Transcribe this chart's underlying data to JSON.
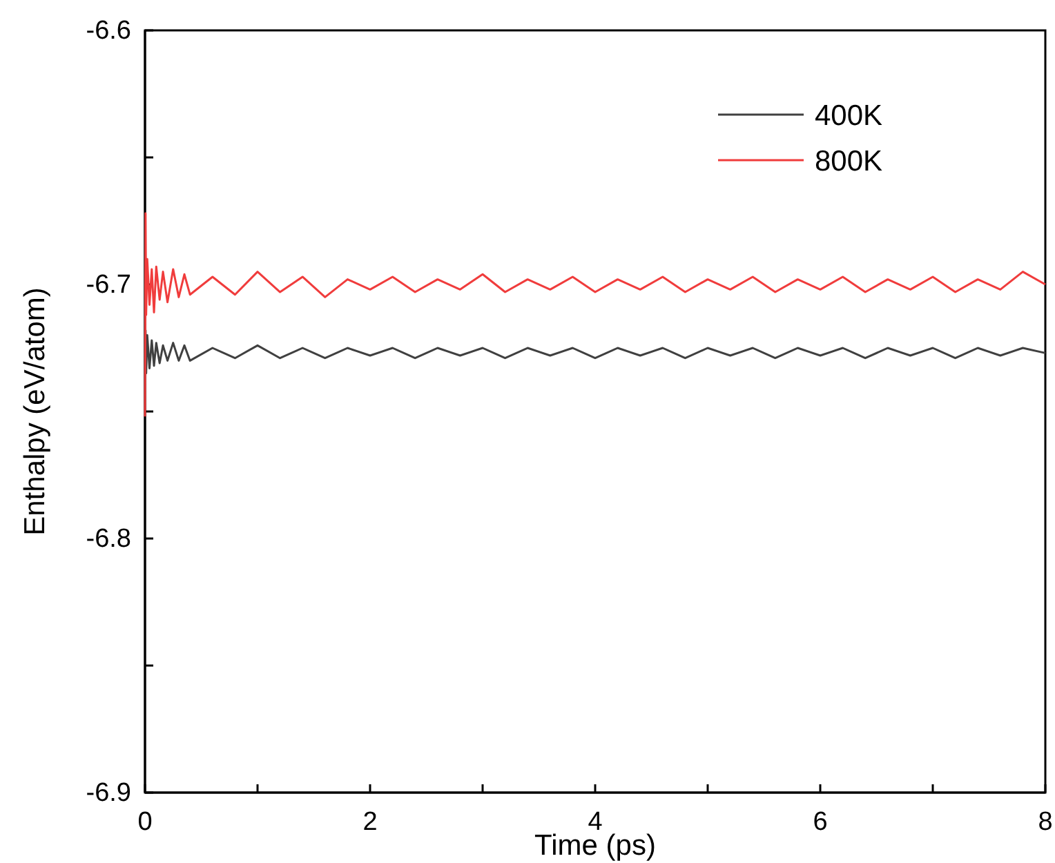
{
  "chart_data": {
    "type": "line",
    "xlabel": "Time (ps)",
    "ylabel": "Enthalpy (eV/atom)",
    "x": [
      0,
      0.005,
      0.01,
      0.02,
      0.04,
      0.06,
      0.08,
      0.1,
      0.13,
      0.16,
      0.2,
      0.25,
      0.3,
      0.35,
      0.4,
      0.6,
      0.8,
      1,
      1.2,
      1.4,
      1.6,
      1.8,
      2,
      2.2,
      2.4,
      2.6,
      2.8,
      3,
      3.2,
      3.4,
      3.6,
      3.8,
      4,
      4.2,
      4.4,
      4.6,
      4.8,
      5,
      5.2,
      5.4,
      5.6,
      5.8,
      6,
      6.2,
      6.4,
      6.6,
      6.8,
      7,
      7.2,
      7.4,
      7.6,
      7.8,
      8
    ],
    "series": [
      {
        "name": "400K",
        "color": "#404040",
        "values": [
          -6.742,
          -6.718,
          -6.735,
          -6.72,
          -6.733,
          -6.722,
          -6.732,
          -6.723,
          -6.731,
          -6.724,
          -6.73,
          -6.723,
          -6.73,
          -6.724,
          -6.73,
          -6.725,
          -6.729,
          -6.724,
          -6.729,
          -6.725,
          -6.729,
          -6.725,
          -6.728,
          -6.725,
          -6.729,
          -6.725,
          -6.728,
          -6.725,
          -6.729,
          -6.725,
          -6.728,
          -6.725,
          -6.729,
          -6.725,
          -6.728,
          -6.725,
          -6.729,
          -6.725,
          -6.728,
          -6.725,
          -6.729,
          -6.725,
          -6.728,
          -6.725,
          -6.729,
          -6.725,
          -6.728,
          -6.725,
          -6.729,
          -6.725,
          -6.728,
          -6.725,
          -6.727
        ]
      },
      {
        "name": "800K",
        "color": "#f03c3c",
        "values": [
          -6.752,
          -6.672,
          -6.712,
          -6.69,
          -6.708,
          -6.694,
          -6.711,
          -6.693,
          -6.706,
          -6.695,
          -6.707,
          -6.694,
          -6.705,
          -6.696,
          -6.704,
          -6.697,
          -6.704,
          -6.695,
          -6.703,
          -6.697,
          -6.705,
          -6.698,
          -6.702,
          -6.697,
          -6.703,
          -6.698,
          -6.702,
          -6.696,
          -6.703,
          -6.698,
          -6.702,
          -6.697,
          -6.703,
          -6.698,
          -6.702,
          -6.697,
          -6.703,
          -6.698,
          -6.702,
          -6.697,
          -6.703,
          -6.698,
          -6.702,
          -6.697,
          -6.703,
          -6.698,
          -6.702,
          -6.697,
          -6.703,
          -6.698,
          -6.702,
          -6.695,
          -6.7
        ]
      }
    ],
    "xlim": [
      0,
      8
    ],
    "xticks": [
      0,
      {
        "value": 1,
        "label": null
      },
      2,
      {
        "value": 3,
        "label": null
      },
      4,
      {
        "value": 5,
        "label": null
      },
      6,
      {
        "value": 7,
        "label": null
      },
      8
    ],
    "ylim": [
      -6.9,
      -6.6
    ],
    "yticks": [
      -6.9,
      {
        "value": -6.85,
        "label": null
      },
      -6.8,
      {
        "value": -6.75,
        "label": null
      },
      -6.7,
      {
        "value": -6.65,
        "label": null
      },
      -6.6
    ],
    "grid": false,
    "legend": "top right",
    "marker": "none",
    "line_style": "solid"
  }
}
